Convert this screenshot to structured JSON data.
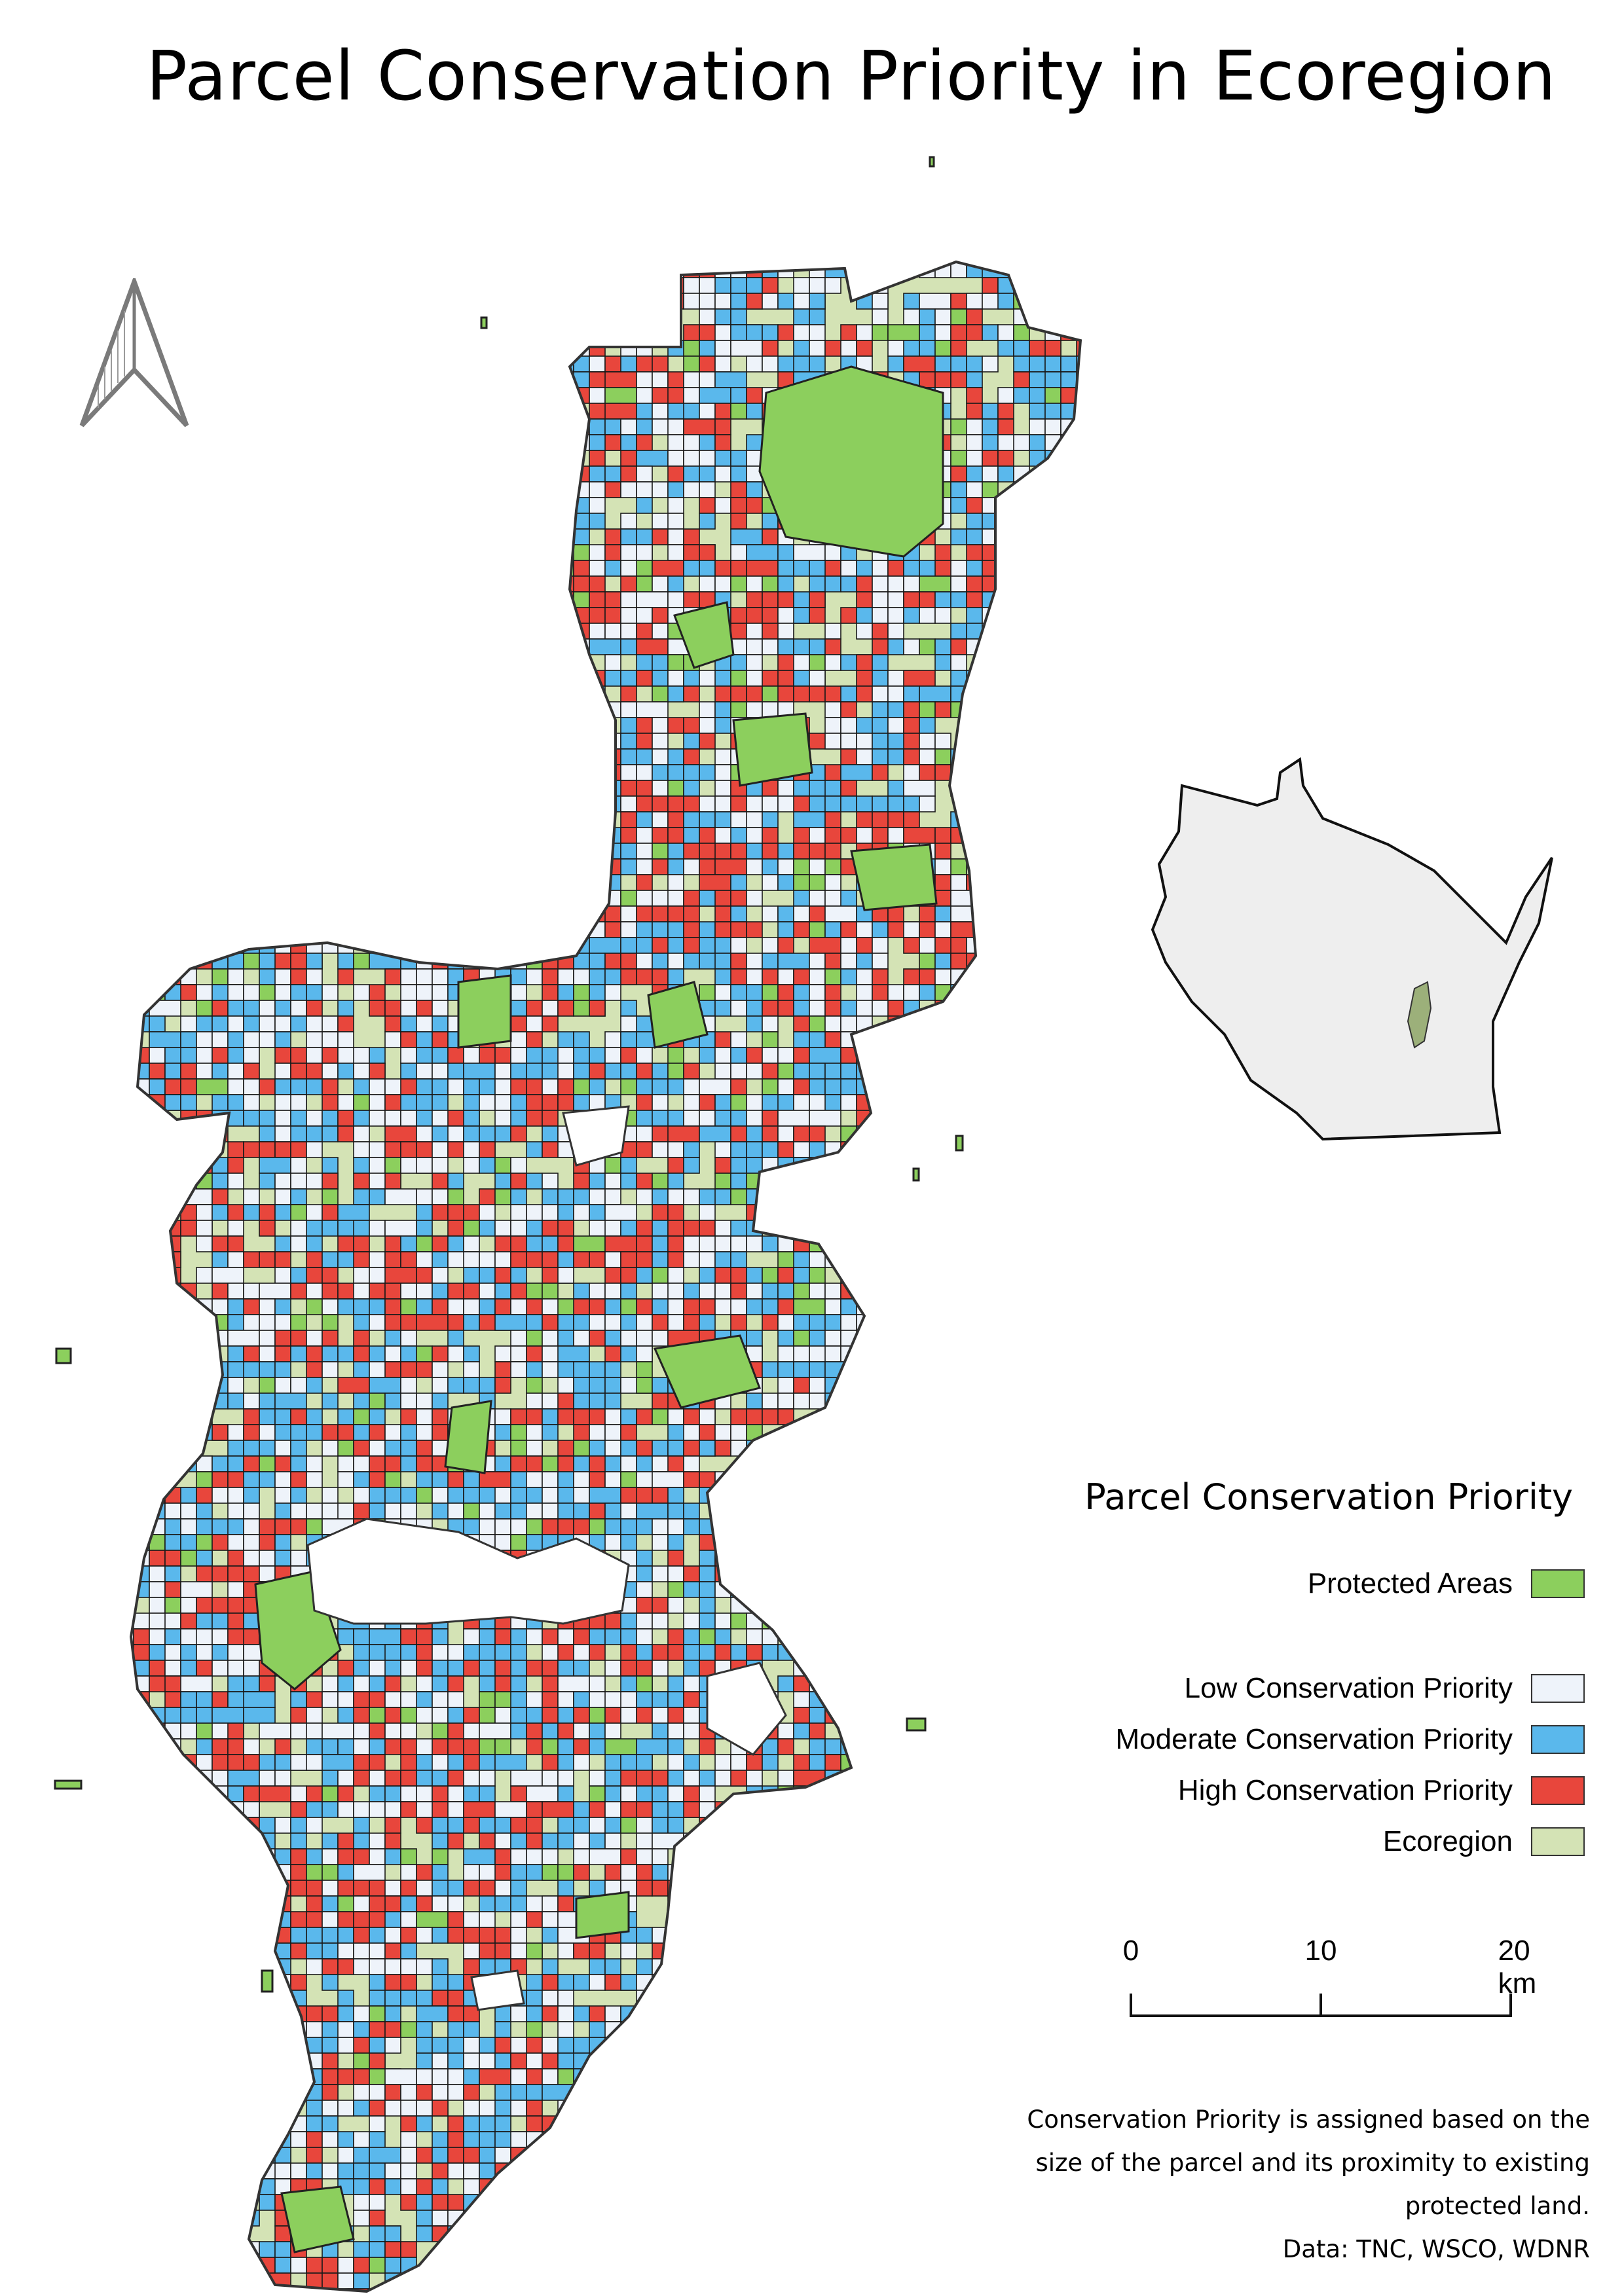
{
  "title": "Parcel Conservation Priority in Ecoregion",
  "legend": {
    "title": "Parcel Conservation Priority",
    "items": [
      {
        "label": "Protected Areas",
        "color": "#8ccf5d"
      },
      {
        "label": "Low Conservation Priority",
        "color": "#eef3fa"
      },
      {
        "label": "Moderate Conservation Priority",
        "color": "#5ab8ec"
      },
      {
        "label": "High Conservation Priority",
        "color": "#e8463c"
      },
      {
        "label": "Ecoregion",
        "color": "#d4e3b5"
      }
    ]
  },
  "scale_bar": {
    "labels": [
      "0",
      "10",
      "20 km"
    ]
  },
  "notes": {
    "lines": [
      "Conservation Priority is assigned based on the",
      "size of the parcel and its proximity to existing",
      "protected land."
    ],
    "source": "Data: TNC, WSCO, WDNR"
  },
  "colors": {
    "protected": "#8ccf5d",
    "low": "#eef3fa",
    "moderate": "#5ab8ec",
    "high": "#e8463c",
    "ecoregion": "#d4e3b5",
    "state_fill": "#eeeeee"
  },
  "icons": {
    "north": "north-arrow-icon"
  }
}
